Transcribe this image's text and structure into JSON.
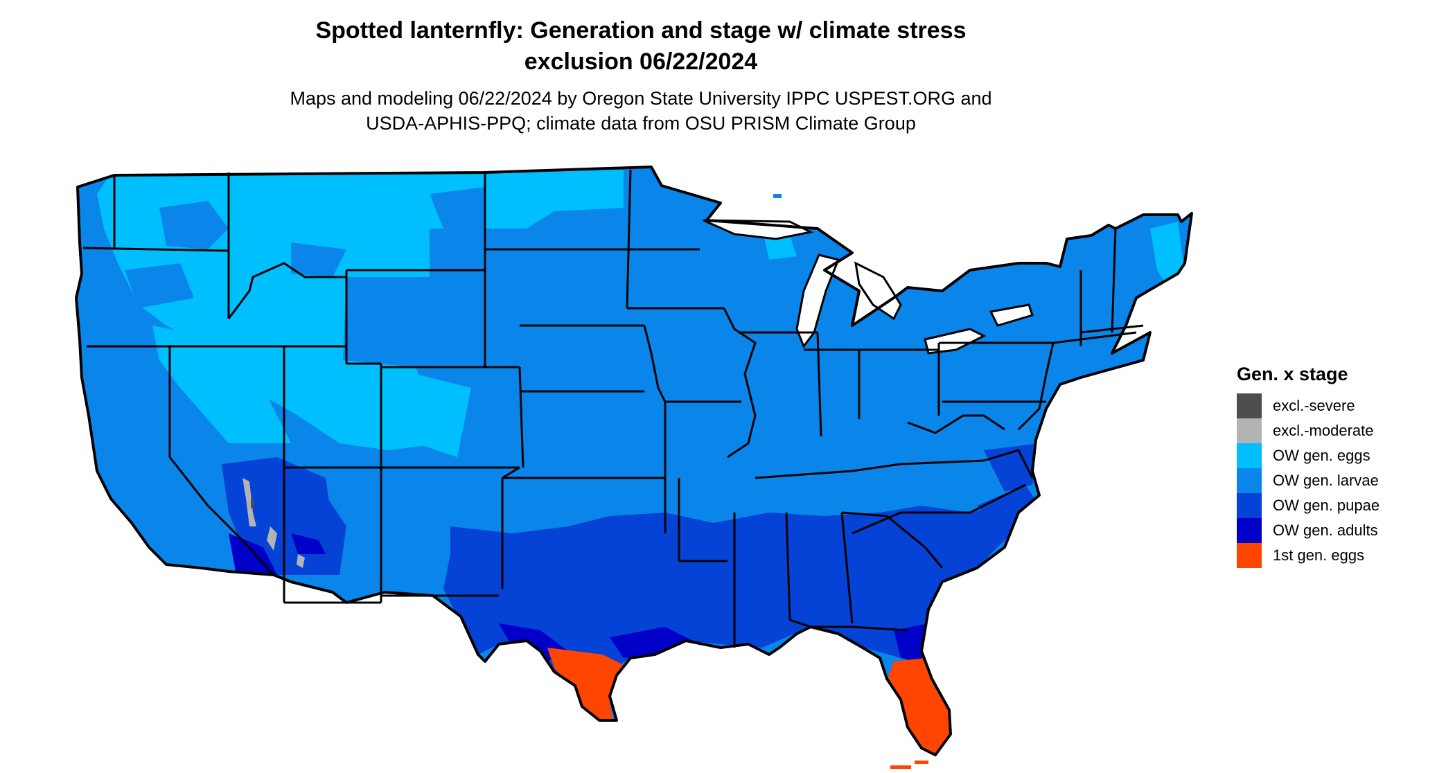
{
  "title_line1": "Spotted lanternfly: Generation and stage w/ climate stress",
  "title_line2": "exclusion 06/22/2024",
  "subtitle_line1": "Maps and modeling 06/22/2024 by Oregon State University IPPC USPEST.ORG and",
  "subtitle_line2": "USDA-APHIS-PPQ; climate data from OSU PRISM Climate Group",
  "legend": {
    "title": "Gen. x stage",
    "items": [
      {
        "label": "excl.-severe",
        "color": "#4d4d4d"
      },
      {
        "label": "excl.-moderate",
        "color": "#b3b3b3"
      },
      {
        "label": "OW gen. eggs",
        "color": "#00bfff"
      },
      {
        "label": "OW gen. larvae",
        "color": "#0a85ea"
      },
      {
        "label": "OW gen. pupae",
        "color": "#0443d6"
      },
      {
        "label": "OW gen. adults",
        "color": "#0000c8"
      },
      {
        "label": "1st gen. eggs",
        "color": "#ff4500"
      }
    ]
  }
}
